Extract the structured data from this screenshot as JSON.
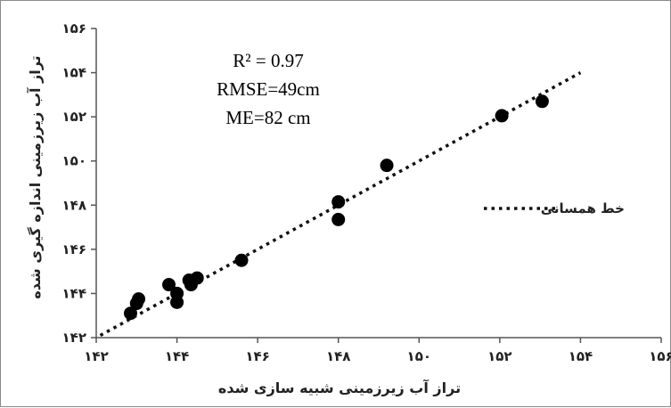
{
  "chart_data": {
    "type": "scatter",
    "xlabel": "تراز آب زیرزمینی شبیه سازی شده",
    "ylabel": "تراز آب زیرزمینی اندازه گیری شده",
    "xlim": [
      142,
      156
    ],
    "ylim": [
      142,
      156
    ],
    "x_ticks": [
      142,
      144,
      146,
      148,
      150,
      152,
      154,
      156
    ],
    "y_ticks": [
      142,
      144,
      146,
      148,
      150,
      152,
      154,
      156
    ],
    "x_tick_labels": [
      "۱۴۲",
      "۱۴۴",
      "۱۴۶",
      "۱۴۸",
      "۱۵۰",
      "۱۵۲",
      "۱۵۴",
      "۱۵۶"
    ],
    "y_tick_labels": [
      "۱۴۲",
      "۱۴۴",
      "۱۴۶",
      "۱۴۸",
      "۱۵۰",
      "۱۵۲",
      "۱۵۴",
      "۱۵۶"
    ],
    "points": [
      {
        "x": 142.85,
        "y": 143.1
      },
      {
        "x": 143.0,
        "y": 143.55
      },
      {
        "x": 143.05,
        "y": 143.75
      },
      {
        "x": 143.8,
        "y": 144.4
      },
      {
        "x": 144.0,
        "y": 144.0
      },
      {
        "x": 144.0,
        "y": 143.6
      },
      {
        "x": 144.3,
        "y": 144.6
      },
      {
        "x": 144.35,
        "y": 144.4
      },
      {
        "x": 144.5,
        "y": 144.7
      },
      {
        "x": 145.6,
        "y": 145.5
      },
      {
        "x": 148.0,
        "y": 148.15
      },
      {
        "x": 148.0,
        "y": 147.35
      },
      {
        "x": 149.2,
        "y": 149.8
      },
      {
        "x": 152.05,
        "y": 152.05
      },
      {
        "x": 153.05,
        "y": 152.7
      }
    ],
    "identity_line": {
      "x": [
        142.1,
        154.0
      ],
      "y": [
        142.1,
        154.0
      ]
    },
    "legend": {
      "label": "خط همسانی",
      "position": "right"
    },
    "annotations": [
      "R² = 0.97",
      "RMSE=49cm",
      "ME=82  cm"
    ],
    "grid": false
  }
}
